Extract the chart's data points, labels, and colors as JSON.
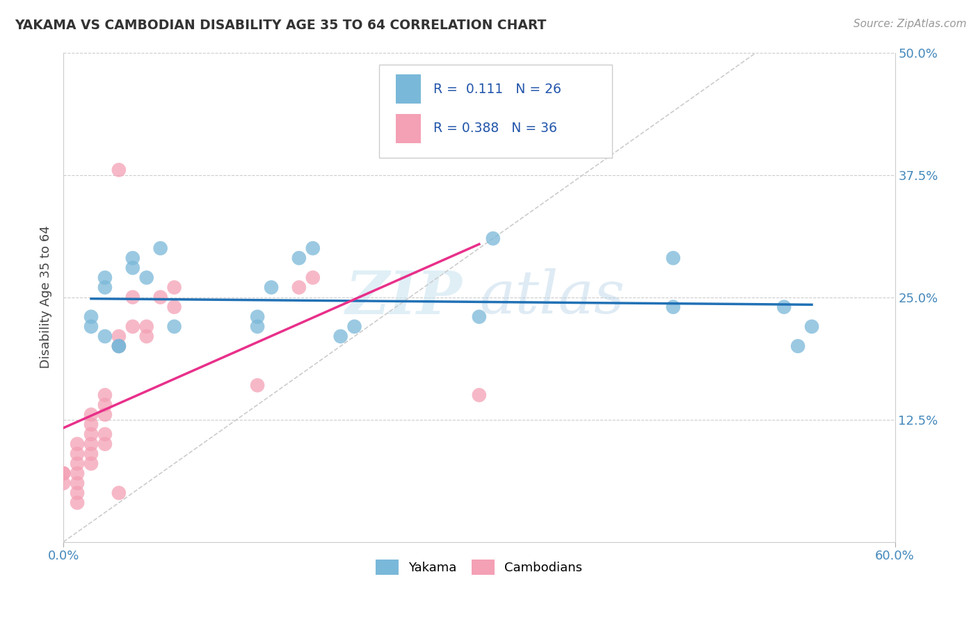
{
  "title": "YAKAMA VS CAMBODIAN DISABILITY AGE 35 TO 64 CORRELATION CHART",
  "source": "Source: ZipAtlas.com",
  "ylabel": "Disability Age 35 to 64",
  "xlim": [
    0.0,
    0.6
  ],
  "ylim": [
    0.0,
    0.5
  ],
  "xticks": [
    0.0,
    0.6
  ],
  "xtick_labels": [
    "0.0%",
    "60.0%"
  ],
  "yticks": [
    0.0,
    0.125,
    0.25,
    0.375,
    0.5
  ],
  "ytick_labels_right": [
    "",
    "12.5%",
    "25.0%",
    "37.5%",
    "50.0%"
  ],
  "watermark_zip": "ZIP",
  "watermark_atlas": "atlas",
  "yakama_color": "#7ab8d9",
  "cambodian_color": "#f4a0b5",
  "trend_yakama_color": "#2171b5",
  "trend_cambodian_color": "#e8308a",
  "ref_line_color": "#cccccc",
  "background_color": "#ffffff",
  "grid_color": "#cccccc",
  "legend_r1_val": "0.111",
  "legend_r1_n": "26",
  "legend_r2_val": "0.388",
  "legend_r2_n": "36",
  "yakama_x": [
    0.02,
    0.02,
    0.03,
    0.03,
    0.04,
    0.05,
    0.05,
    0.06,
    0.07,
    0.08,
    0.14,
    0.14,
    0.15,
    0.17,
    0.18,
    0.2,
    0.21,
    0.3,
    0.44,
    0.44,
    0.52,
    0.53,
    0.54,
    0.03,
    0.04,
    0.31
  ],
  "yakama_y": [
    0.22,
    0.23,
    0.27,
    0.26,
    0.2,
    0.28,
    0.29,
    0.27,
    0.3,
    0.22,
    0.22,
    0.23,
    0.26,
    0.29,
    0.3,
    0.21,
    0.22,
    0.23,
    0.24,
    0.29,
    0.24,
    0.2,
    0.22,
    0.21,
    0.2,
    0.31
  ],
  "cambodian_x": [
    0.0,
    0.0,
    0.0,
    0.01,
    0.01,
    0.01,
    0.01,
    0.01,
    0.01,
    0.01,
    0.02,
    0.02,
    0.02,
    0.02,
    0.02,
    0.02,
    0.03,
    0.03,
    0.03,
    0.03,
    0.03,
    0.04,
    0.04,
    0.05,
    0.05,
    0.06,
    0.06,
    0.07,
    0.08,
    0.08,
    0.14,
    0.17,
    0.18,
    0.3,
    0.04,
    0.04
  ],
  "cambodian_y": [
    0.06,
    0.07,
    0.07,
    0.04,
    0.05,
    0.06,
    0.07,
    0.08,
    0.09,
    0.1,
    0.08,
    0.09,
    0.1,
    0.11,
    0.12,
    0.13,
    0.1,
    0.11,
    0.13,
    0.14,
    0.15,
    0.2,
    0.21,
    0.22,
    0.25,
    0.21,
    0.22,
    0.25,
    0.24,
    0.26,
    0.16,
    0.26,
    0.27,
    0.15,
    0.38,
    0.05
  ]
}
